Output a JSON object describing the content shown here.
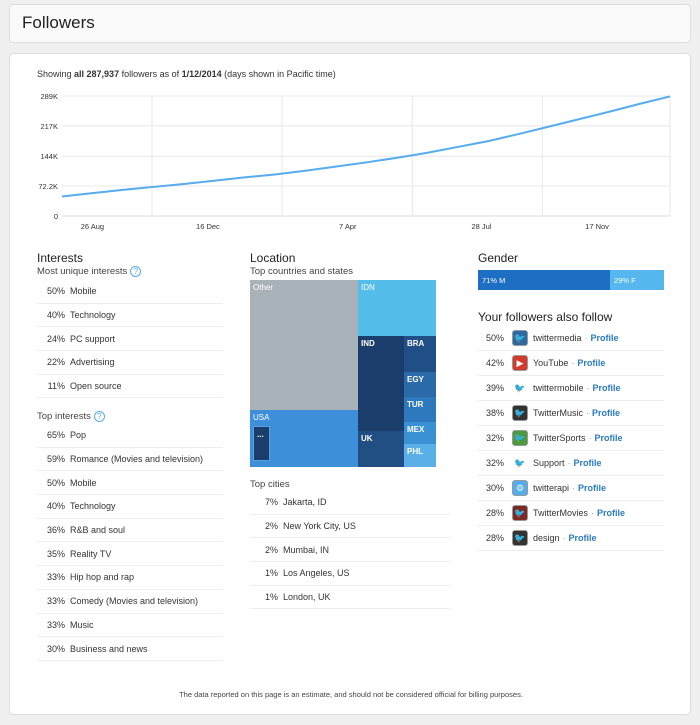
{
  "header": {
    "title": "Followers"
  },
  "summary": {
    "prefix": "Showing ",
    "all": "all 287,937",
    "middle": " followers as of ",
    "date": "1/12/2014",
    "suffix": " (days shown in Pacific time)"
  },
  "chart_data": {
    "type": "line",
    "title": "",
    "xlabel": "",
    "ylabel": "",
    "y_tick_labels": [
      "0",
      "72.2K",
      "144K",
      "217K",
      "289K"
    ],
    "y_ticks": [
      0,
      72200,
      144000,
      217000,
      289000
    ],
    "ylim": [
      0,
      289000
    ],
    "x_tick_labels": [
      "26 Aug",
      "16 Dec",
      "7 Apr",
      "28 Jul",
      "17 Nov"
    ],
    "x_ticks": [
      0.05,
      0.24,
      0.47,
      0.69,
      0.88
    ],
    "grid": true,
    "color": "#55acee",
    "series": [
      {
        "x": [
          0.0,
          0.05,
          0.1,
          0.15,
          0.2,
          0.25,
          0.3,
          0.35,
          0.4,
          0.45,
          0.5,
          0.55,
          0.6,
          0.65,
          0.7,
          0.75,
          0.8,
          0.85,
          0.9,
          0.95,
          1.0
        ],
        "y": [
          47000,
          55000,
          63000,
          70000,
          77000,
          85000,
          93000,
          100000,
          109000,
          119000,
          129000,
          140000,
          152000,
          166000,
          180000,
          197000,
          215000,
          233000,
          251000,
          270000,
          287937
        ]
      }
    ]
  },
  "interests": {
    "title": "Interests",
    "unique_title": "Most unique interests",
    "unique": [
      {
        "pct": "50%",
        "label": "Mobile"
      },
      {
        "pct": "40%",
        "label": "Technology"
      },
      {
        "pct": "24%",
        "label": "PC support"
      },
      {
        "pct": "22%",
        "label": "Advertising"
      },
      {
        "pct": "11%",
        "label": "Open source"
      }
    ],
    "top_title": "Top interests",
    "top": [
      {
        "pct": "65%",
        "label": "Pop"
      },
      {
        "pct": "59%",
        "label": "Romance (Movies and television)"
      },
      {
        "pct": "50%",
        "label": "Mobile"
      },
      {
        "pct": "40%",
        "label": "Technology"
      },
      {
        "pct": "36%",
        "label": "R&B and soul"
      },
      {
        "pct": "35%",
        "label": "Reality TV"
      },
      {
        "pct": "33%",
        "label": "Hip hop and rap"
      },
      {
        "pct": "33%",
        "label": "Comedy (Movies and television)"
      },
      {
        "pct": "33%",
        "label": "Music"
      },
      {
        "pct": "30%",
        "label": "Business and news"
      }
    ]
  },
  "location": {
    "title": "Location",
    "countries_title": "Top countries and states",
    "treemap": {
      "other": "Other",
      "idn": "IDN",
      "ind": "IND",
      "bra": "BRA",
      "egy": "EGY",
      "tur": "TUR",
      "mex": "MEX",
      "phl": "PHL",
      "usa": "USA",
      "uk": "UK",
      "more": "..."
    },
    "cities_title": "Top cities",
    "cities": [
      {
        "pct": "7%",
        "label": "Jakarta, ID"
      },
      {
        "pct": "2%",
        "label": "New York City, US"
      },
      {
        "pct": "2%",
        "label": "Mumbai, IN"
      },
      {
        "pct": "1%",
        "label": "Los Angeles, US"
      },
      {
        "pct": "1%",
        "label": "London, UK"
      }
    ]
  },
  "gender": {
    "title": "Gender",
    "male": "71% M",
    "female": "29% F",
    "male_share": 71,
    "female_share": 29
  },
  "also_follow": {
    "title": "Your followers also follow",
    "profile_label": "Profile",
    "items": [
      {
        "pct": "50%",
        "name": "twittermedia",
        "color": "#2d6aa3",
        "glyph": "🐦"
      },
      {
        "pct": "42%",
        "name": "YouTube",
        "color": "#d33a2c",
        "glyph": "▶"
      },
      {
        "pct": "39%",
        "name": "twittermobile",
        "color": "#ffffff",
        "glyph": "🐦"
      },
      {
        "pct": "38%",
        "name": "TwitterMusic",
        "color": "#333333",
        "glyph": "🐦"
      },
      {
        "pct": "32%",
        "name": "TwitterSports",
        "color": "#4a9a3e",
        "glyph": "🐦"
      },
      {
        "pct": "32%",
        "name": "Support",
        "color": "#ffffff",
        "glyph": "🐦"
      },
      {
        "pct": "30%",
        "name": "twitterapi",
        "color": "#55acee",
        "glyph": "⚙"
      },
      {
        "pct": "28%",
        "name": "TwitterMovies",
        "color": "#7a2a24",
        "glyph": "🐦"
      },
      {
        "pct": "28%",
        "name": "design",
        "color": "#333333",
        "glyph": "🐦"
      }
    ]
  },
  "footer": {
    "text": "The data reported on this page is an estimate, and should not be considered official for billing purposes."
  }
}
